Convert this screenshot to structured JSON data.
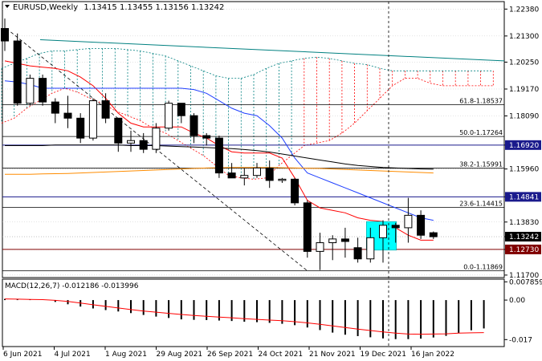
{
  "header": {
    "symbol_timeframe": "EURUSD,Weekly",
    "ohlc": "1.13415 1.13455 1.13156 1.13242"
  },
  "colors": {
    "background": "#ffffff",
    "grid": "#c8c8c8",
    "bull_body": "#ffffff",
    "bear_body": "#000000",
    "candle_outline": "#000000",
    "highlight_box": "#00ffff",
    "red_line": "#ff0000",
    "blue_line": "#1f3fff",
    "black_line": "#000000",
    "orange_line": "#ff8c00",
    "cloud_border": "#008080",
    "cloud_red": "#ff0000",
    "navy_level": "#1a1a8c",
    "teal_trend": "#008080",
    "price_tag": "#1a1a8c",
    "current_price_tag": "#000000",
    "support_tag": "#800000"
  },
  "price_scale": [
    "1.22380",
    "1.21300",
    "1.20250",
    "1.19170",
    "1.18090",
    "1.16920",
    "1.15960",
    "1.14841",
    "1.13830",
    "1.13242",
    "1.12730",
    "1.11700"
  ],
  "price_scale_values": [
    1.2238,
    1.213,
    1.2025,
    1.1917,
    1.1809,
    1.1692,
    1.1596,
    1.14841,
    1.1383,
    1.13242,
    1.1273,
    1.117
  ],
  "price_tags": [
    {
      "label": "1.16920",
      "value": 1.1692,
      "style": "navy"
    },
    {
      "label": "1.14841",
      "value": 1.14841,
      "style": "navy"
    },
    {
      "label": "1.13242",
      "value": 1.13242,
      "style": "current"
    },
    {
      "label": "1.12730",
      "value": 1.1273,
      "style": "support"
    }
  ],
  "fib_labels": [
    {
      "text": "61.8-1.18537",
      "value": 1.18537
    },
    {
      "text": "50.0-1.17264",
      "value": 1.17264
    },
    {
      "text": "38.2-1.15991",
      "value": 1.15991
    },
    {
      "text": "23.6-1.14415",
      "value": 1.14415
    },
    {
      "text": "0.0-1.11869",
      "value": 1.11869
    }
  ],
  "macd": {
    "label": "MACD(12,26,7) -0.012186 -0.013996",
    "scale_labels": [
      "0.007859",
      "0.00",
      "-0.017"
    ],
    "scale_values": [
      0.007859,
      0.0,
      -0.017
    ],
    "histogram": [
      0.0005,
      0.0003,
      0.0002,
      0.0,
      -0.0008,
      -0.0018,
      -0.0028,
      -0.0036,
      -0.0043,
      -0.0049,
      -0.0056,
      -0.0064,
      -0.0071,
      -0.0077,
      -0.0083,
      -0.0085,
      -0.0086,
      -0.0088,
      -0.009,
      -0.0093,
      -0.0095,
      -0.0098,
      -0.0102,
      -0.0108,
      -0.0118,
      -0.0129,
      -0.014,
      -0.0149,
      -0.0155,
      -0.016,
      -0.0165,
      -0.0168,
      -0.0168,
      -0.0166,
      -0.0161,
      -0.0154,
      -0.0143,
      -0.013,
      -0.0122
    ],
    "signal": [
      0.0005,
      0.0004,
      0.0003,
      0.0002,
      -0.0001,
      -0.0006,
      -0.0013,
      -0.002,
      -0.0027,
      -0.0034,
      -0.0041,
      -0.0047,
      -0.0052,
      -0.0057,
      -0.0062,
      -0.0066,
      -0.007,
      -0.0073,
      -0.0076,
      -0.008,
      -0.0083,
      -0.0086,
      -0.0089,
      -0.0093,
      -0.0098,
      -0.0104,
      -0.0111,
      -0.0118,
      -0.0125,
      -0.0131,
      -0.0137,
      -0.0142,
      -0.0146,
      -0.0147,
      -0.0146,
      -0.0145,
      -0.0142,
      -0.0141,
      -0.014
    ]
  },
  "time_axis": [
    "6 Jun 2021",
    "4 Jul 2021",
    "1 Aug 2021",
    "29 Aug 2021",
    "26 Sep 2021",
    "24 Oct 2021",
    "21 Nov 2021",
    "19 Dec 2021",
    "16 Jan 2022"
  ],
  "chart_data": {
    "type": "candlestick",
    "series": [
      {
        "name": "EURUSD",
        "ohlc": [
          [
            1.216,
            1.22,
            1.207,
            1.211
          ],
          [
            1.211,
            1.214,
            1.185,
            1.186
          ],
          [
            1.186,
            1.1975,
            1.185,
            1.196
          ],
          [
            1.196,
            1.1975,
            1.185,
            1.1865
          ],
          [
            1.1865,
            1.188,
            1.178,
            1.182
          ],
          [
            1.182,
            1.189,
            1.176,
            1.18
          ],
          [
            1.18,
            1.182,
            1.17,
            1.172
          ],
          [
            1.172,
            1.188,
            1.171,
            1.187
          ],
          [
            1.187,
            1.19,
            1.178,
            1.18
          ],
          [
            1.18,
            1.18,
            1.1665,
            1.17
          ],
          [
            1.17,
            1.175,
            1.1665,
            1.171
          ],
          [
            1.171,
            1.174,
            1.166,
            1.1675
          ],
          [
            1.1675,
            1.178,
            1.166,
            1.176
          ],
          [
            1.176,
            1.187,
            1.175,
            1.186
          ],
          [
            1.186,
            1.186,
            1.178,
            1.181
          ],
          [
            1.181,
            1.182,
            1.17,
            1.173
          ],
          [
            1.173,
            1.174,
            1.169,
            1.172
          ],
          [
            1.172,
            1.173,
            1.156,
            1.158
          ],
          [
            1.158,
            1.162,
            1.156,
            1.156
          ],
          [
            1.156,
            1.16,
            1.153,
            1.157
          ],
          [
            1.157,
            1.162,
            1.156,
            1.16
          ],
          [
            1.16,
            1.163,
            1.152,
            1.155
          ],
          [
            1.155,
            1.156,
            1.154,
            1.1555
          ],
          [
            1.1555,
            1.156,
            1.145,
            1.146
          ],
          [
            1.146,
            1.147,
            1.124,
            1.1265
          ],
          [
            1.1265,
            1.134,
            1.119,
            1.13
          ],
          [
            1.13,
            1.133,
            1.123,
            1.1315
          ],
          [
            1.1315,
            1.136,
            1.124,
            1.1305
          ],
          [
            1.128,
            1.132,
            1.122,
            1.1235
          ],
          [
            1.1235,
            1.136,
            1.122,
            1.132
          ],
          [
            1.132,
            1.139,
            1.122,
            1.137
          ],
          [
            1.137,
            1.138,
            1.13,
            1.136
          ],
          [
            1.136,
            1.148,
            1.13,
            1.141
          ],
          [
            1.141,
            1.143,
            1.1315,
            1.133
          ],
          [
            1.134,
            1.1345,
            1.1315,
            1.1324
          ]
        ]
      },
      {
        "name": "red_line",
        "values": [
          1.203,
          1.202,
          1.201,
          1.2005,
          1.2,
          1.199,
          1.1965,
          1.193,
          1.188,
          1.182,
          1.178,
          1.1765,
          1.1765,
          1.1765,
          1.1765,
          1.174,
          1.172,
          1.169,
          1.1665,
          1.166,
          1.166,
          1.166,
          1.164,
          1.156,
          1.147,
          1.144,
          1.143,
          1.142,
          1.14,
          1.139,
          1.1385,
          1.136,
          1.133,
          1.131,
          1.131
        ]
      },
      {
        "name": "blue_line",
        "values": [
          1.195,
          1.1945,
          1.1935,
          1.192,
          1.192,
          1.192,
          1.192,
          1.192,
          1.192,
          1.192,
          1.192,
          1.192,
          1.192,
          1.192,
          1.192,
          1.1915,
          1.19,
          1.187,
          1.184,
          1.182,
          1.181,
          1.177,
          1.172,
          1.164,
          1.158,
          1.156,
          1.154,
          1.152,
          1.15,
          1.148,
          1.146,
          1.144,
          1.142,
          1.14,
          1.139
        ]
      },
      {
        "name": "black_line",
        "values": [
          1.169,
          1.169,
          1.169,
          1.169,
          1.1692,
          1.1692,
          1.1692,
          1.1692,
          1.1692,
          1.1692,
          1.169,
          1.169,
          1.169,
          1.1688,
          1.1686,
          1.1684,
          1.1682,
          1.168,
          1.1678,
          1.1674,
          1.167,
          1.1664,
          1.1656,
          1.1648,
          1.164,
          1.1632,
          1.1624,
          1.1616,
          1.161,
          1.1606,
          1.1602,
          1.16,
          1.1598,
          1.1596,
          1.1595
        ]
      },
      {
        "name": "orange_line",
        "values": [
          1.1575,
          1.1575,
          1.1575,
          1.1576,
          1.1577,
          1.1578,
          1.158,
          1.1582,
          1.1584,
          1.1586,
          1.1588,
          1.159,
          1.1592,
          1.1594,
          1.1596,
          1.1598,
          1.16,
          1.1601,
          1.1602,
          1.1602,
          1.1602,
          1.1602,
          1.1601,
          1.16,
          1.1599,
          1.1598,
          1.1596,
          1.1594,
          1.1592,
          1.159,
          1.1588,
          1.1586,
          1.1584,
          1.1582,
          1.158
        ]
      }
    ],
    "ylim": [
      1.116,
      1.2268
    ]
  }
}
